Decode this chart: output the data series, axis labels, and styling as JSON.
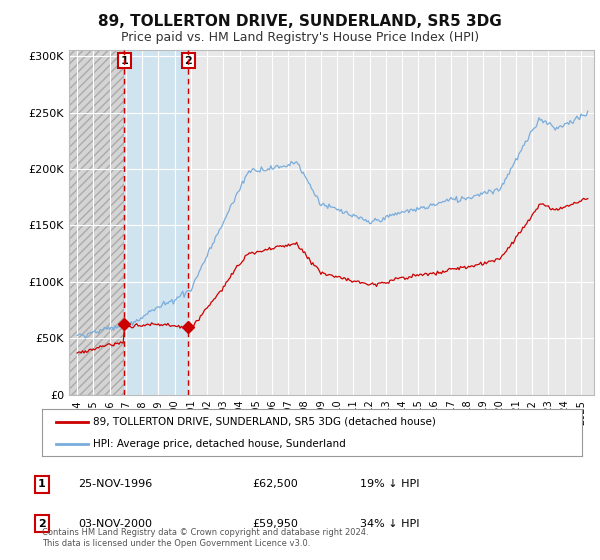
{
  "title": "89, TOLLERTON DRIVE, SUNDERLAND, SR5 3DG",
  "subtitle": "Price paid vs. HM Land Registry's House Price Index (HPI)",
  "title_fontsize": 11,
  "subtitle_fontsize": 9,
  "background_color": "#ffffff",
  "plot_bg_color": "#e8e8e8",
  "sale1_date": 1996.9,
  "sale1_price": 62500,
  "sale2_date": 2000.84,
  "sale2_price": 59950,
  "hpi_color": "#7aaddc",
  "price_color": "#cc0000",
  "dashed_line_color": "#cc0000",
  "grid_color": "#ffffff",
  "hatch_color": "#c8c8c8",
  "light_blue_color": "#d0e4f0",
  "legend_entry1": "89, TOLLERTON DRIVE, SUNDERLAND, SR5 3DG (detached house)",
  "legend_entry2": "HPI: Average price, detached house, Sunderland",
  "table_row1": [
    "1",
    "25-NOV-1996",
    "£62,500",
    "19% ↓ HPI"
  ],
  "table_row2": [
    "2",
    "03-NOV-2000",
    "£59,950",
    "34% ↓ HPI"
  ],
  "footer": "Contains HM Land Registry data © Crown copyright and database right 2024.\nThis data is licensed under the Open Government Licence v3.0.",
  "ylim": [
    0,
    305000
  ],
  "xlim_start": 1993.5,
  "xlim_end": 2025.8,
  "yticks": [
    0,
    50000,
    100000,
    150000,
    200000,
    250000,
    300000
  ],
  "ytick_labels": [
    "£0",
    "£50K",
    "£100K",
    "£150K",
    "£200K",
    "£250K",
    "£300K"
  ]
}
